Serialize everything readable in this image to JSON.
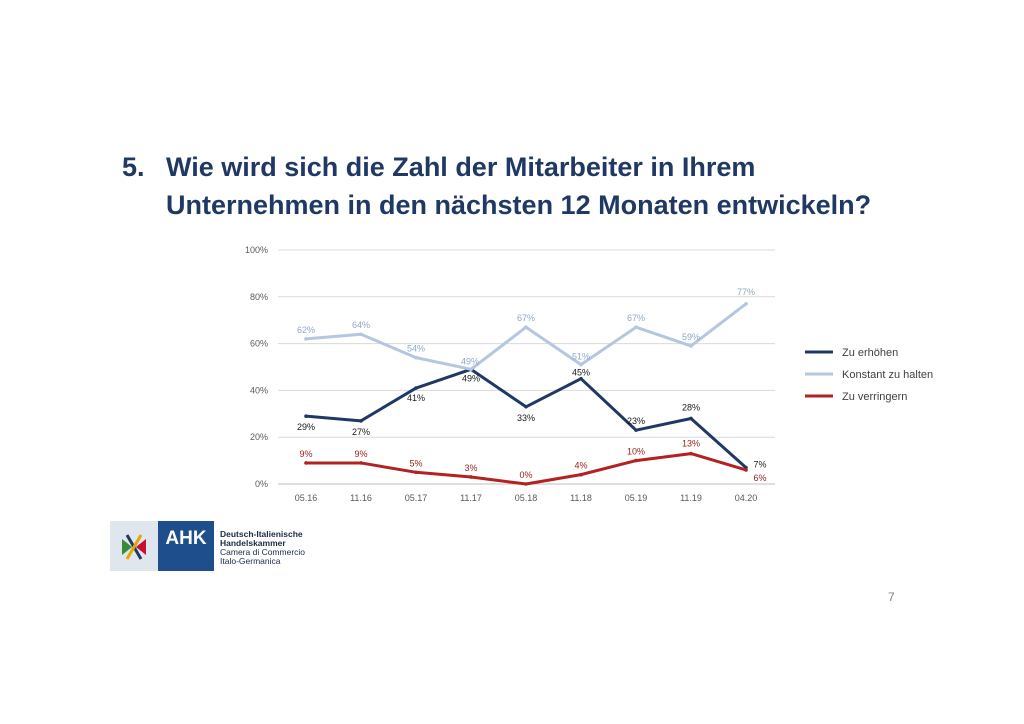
{
  "slide": {
    "number": "5.",
    "title_line1": "Wie wird sich die Zahl der Mitarbeiter in Ihrem",
    "title_line2": "Unternehmen in den nächsten 12 Monaten entwickeln?",
    "page_number": "7"
  },
  "logo": {
    "brand": "AHK",
    "line1": "Deutsch-Italienische",
    "line2": "Handelskammer",
    "line3": "Camera di Commercio",
    "line4": "Italo-Germanica"
  },
  "chart_data": {
    "type": "line",
    "categories": [
      "05.16",
      "11.16",
      "05.17",
      "11.17",
      "05.18",
      "11.18",
      "05.19",
      "11.19",
      "04.20"
    ],
    "ylim": [
      0,
      100
    ],
    "yticks": [
      0,
      20,
      40,
      60,
      80,
      100
    ],
    "ytick_labels": [
      "0%",
      "20%",
      "40%",
      "60%",
      "80%",
      "100%"
    ],
    "grid": true,
    "legend_position": "right",
    "series": [
      {
        "name": "Zu erhöhen",
        "color": "#1f3864",
        "values": [
          29,
          27,
          41,
          49,
          33,
          45,
          23,
          28,
          7
        ],
        "labels": [
          "29%",
          "27%",
          "41%",
          "49%",
          "33%",
          "45%",
          "23%",
          "28%",
          "7%"
        ]
      },
      {
        "name": "Konstant zu halten",
        "color": "#b4c6e0",
        "values": [
          62,
          64,
          54,
          49,
          67,
          51,
          67,
          59,
          77
        ],
        "labels": [
          "62%",
          "64%",
          "54%",
          "49%",
          "67%",
          "51%",
          "67%",
          "59%",
          "77%"
        ]
      },
      {
        "name": "Zu verringern",
        "color": "#b22222",
        "values": [
          9,
          9,
          5,
          3,
          0,
          4,
          10,
          13,
          6
        ],
        "labels": [
          "9%",
          "9%",
          "5%",
          "3%",
          "0%",
          "4%",
          "10%",
          "13%",
          "6%"
        ]
      }
    ]
  }
}
